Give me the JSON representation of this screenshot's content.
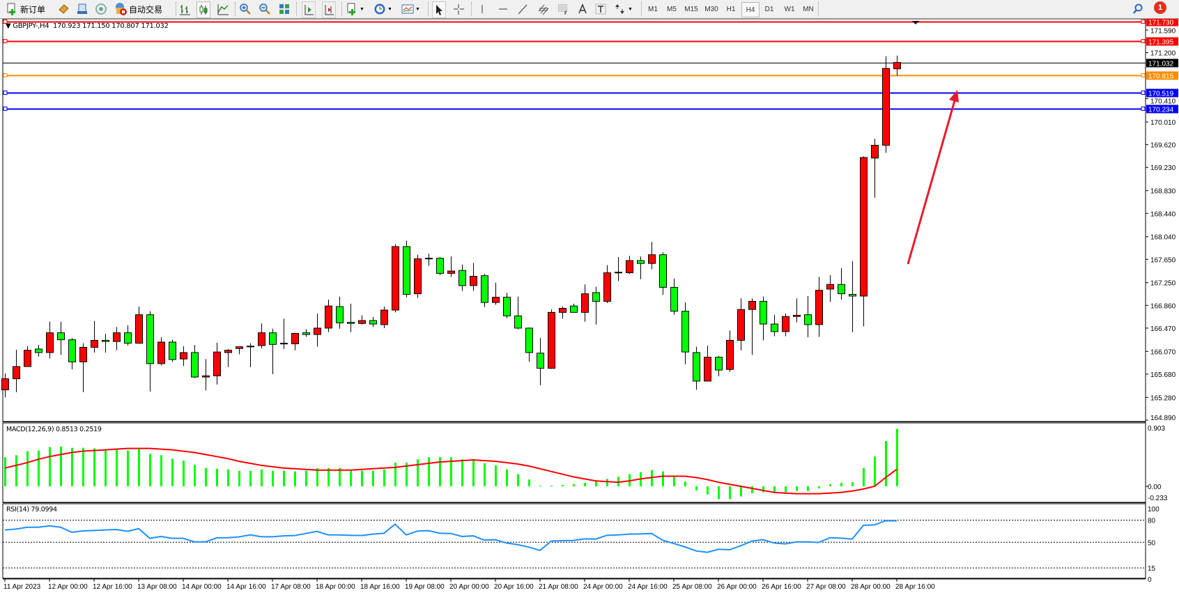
{
  "toolbar": {
    "new_order_label": "新订单",
    "auto_trading_label": "自动交易",
    "timeframes": [
      "M1",
      "M5",
      "M15",
      "M30",
      "H1",
      "H4",
      "D1",
      "W1",
      "MN"
    ],
    "selected_timeframe": "H4",
    "notification_count": "1",
    "icons": [
      "new-order-icon",
      "metaeditor-icon",
      "data-window-icon",
      "signals-icon",
      "auto-trading-icon",
      "bar-chart-icon",
      "candlestick-icon",
      "line-chart-icon",
      "zoom-in-icon",
      "zoom-out-icon",
      "tile-windows-icon",
      "chart-shift-icon",
      "autoscroll-icon",
      "indicators-icon",
      "periods-icon",
      "templates-icon",
      "cursor-icon",
      "crosshair-icon",
      "vertical-line-icon",
      "horizontal-line-icon",
      "trendline-icon",
      "equidistant-channel-icon",
      "fibonacci-icon",
      "text-icon",
      "text-label-icon",
      "arrows-icon",
      "search-icon",
      "notification-icon"
    ]
  },
  "chart": {
    "symbol_header": "GBPJPY-,H4  170.923 171.150 170.807 171.032",
    "colors": {
      "up": "#ff0000",
      "down": "#00ff00",
      "grid_bg": "#ffffff",
      "macd_hist": "#00ff00",
      "macd_signal": "#ff0000",
      "rsi": "#1e90ff",
      "arrow": "#e8192c"
    },
    "price_axis_ticks": [
      "171.590",
      "171.200",
      "170.410",
      "170.010",
      "169.620",
      "169.230",
      "168.830",
      "168.440",
      "168.040",
      "167.650",
      "167.250",
      "166.860",
      "166.470",
      "166.070",
      "165.680",
      "165.280",
      "164.890"
    ],
    "price_lines": [
      {
        "value": "171.730",
        "color": "#ff0000"
      },
      {
        "value": "171.395",
        "color": "#ff0000"
      },
      {
        "value": "171.032",
        "color": "#000000"
      },
      {
        "value": "170.815",
        "color": "#ff8c00"
      },
      {
        "value": "170.519",
        "color": "#0000ff"
      },
      {
        "value": "170.234",
        "color": "#0000ff"
      }
    ],
    "time_labels": [
      "11 Apr 2023",
      "12 Apr 00:00",
      "12 Apr 16:00",
      "13 Apr 08:00",
      "14 Apr 00:00",
      "14 Apr 16:00",
      "17 Apr 08:00",
      "18 Apr 00:00",
      "18 Apr 16:00",
      "19 Apr 08:00",
      "20 Apr 00:00",
      "20 Apr 16:00",
      "21 Apr 08:00",
      "24 Apr 00:00",
      "24 Apr 16:00",
      "25 Apr 08:00",
      "26 Apr 00:00",
      "26 Apr 16:00",
      "27 Apr 08:00",
      "28 Apr 00:00",
      "28 Apr 16:00"
    ],
    "arrow_annotation": {
      "from_price": 167.57,
      "to_price": 170.56
    }
  },
  "macd": {
    "label": "MACD(12,26,9) 0.8513 0.2519",
    "axis_labels": [
      "0.903",
      "0.00",
      "-0.233"
    ]
  },
  "rsi": {
    "label": "RSI(14) 79.0994",
    "axis_labels": [
      "100",
      "80",
      "50",
      "15",
      "0"
    ],
    "levels": [
      80,
      50,
      15
    ]
  },
  "chart_data": {
    "type": "candlestick",
    "symbol": "GBPJPY-",
    "timeframe": "H4",
    "ohlc": [
      [
        165.41,
        165.69,
        165.28,
        165.6
      ],
      [
        165.6,
        166.1,
        165.37,
        165.81
      ],
      [
        165.81,
        166.16,
        165.81,
        166.09
      ],
      [
        166.11,
        166.18,
        165.98,
        166.05
      ],
      [
        166.05,
        166.58,
        165.95,
        166.39
      ],
      [
        166.39,
        166.58,
        166.01,
        166.27
      ],
      [
        166.27,
        166.3,
        165.76,
        165.89
      ],
      [
        165.89,
        166.21,
        165.37,
        166.14
      ],
      [
        166.14,
        166.59,
        166.05,
        166.26
      ],
      [
        166.26,
        166.37,
        166.05,
        166.24
      ],
      [
        166.24,
        166.49,
        166.09,
        166.39
      ],
      [
        166.39,
        166.52,
        166.17,
        166.21
      ],
      [
        166.21,
        166.84,
        166.21,
        166.7
      ],
      [
        166.7,
        166.76,
        165.38,
        165.86
      ],
      [
        165.86,
        166.31,
        165.83,
        166.23
      ],
      [
        166.23,
        166.27,
        165.89,
        165.93
      ],
      [
        165.94,
        166.16,
        165.82,
        166.05
      ],
      [
        166.05,
        166.18,
        165.61,
        165.63
      ],
      [
        165.63,
        165.94,
        165.4,
        165.65
      ],
      [
        165.65,
        166.22,
        165.5,
        166.06
      ],
      [
        166.05,
        166.11,
        165.8,
        166.09
      ],
      [
        166.12,
        166.15,
        166.02,
        166.15
      ],
      [
        166.16,
        166.21,
        165.8,
        166.16
      ],
      [
        166.17,
        166.55,
        166.12,
        166.39
      ],
      [
        166.39,
        166.46,
        165.68,
        166.19
      ],
      [
        166.21,
        166.63,
        166.11,
        166.21
      ],
      [
        166.2,
        166.39,
        166.09,
        166.38
      ],
      [
        166.39,
        166.45,
        166.32,
        166.36
      ],
      [
        166.36,
        166.72,
        166.15,
        166.47
      ],
      [
        166.47,
        166.96,
        166.4,
        166.85
      ],
      [
        166.84,
        167.01,
        166.46,
        166.56
      ],
      [
        166.57,
        166.89,
        166.4,
        166.55
      ],
      [
        166.55,
        166.69,
        166.53,
        166.6
      ],
      [
        166.6,
        166.66,
        166.49,
        166.54
      ],
      [
        166.53,
        166.84,
        166.47,
        166.78
      ],
      [
        166.78,
        167.91,
        166.74,
        167.87
      ],
      [
        167.87,
        167.97,
        167.0,
        167.05
      ],
      [
        167.06,
        167.73,
        166.99,
        167.66
      ],
      [
        167.67,
        167.75,
        167.54,
        167.67
      ],
      [
        167.67,
        167.69,
        167.38,
        167.41
      ],
      [
        167.41,
        167.7,
        167.35,
        167.45
      ],
      [
        167.46,
        167.56,
        167.11,
        167.2
      ],
      [
        167.2,
        167.59,
        167.11,
        167.36
      ],
      [
        167.37,
        167.4,
        166.83,
        166.91
      ],
      [
        166.91,
        167.25,
        166.87,
        167.0
      ],
      [
        167.0,
        167.08,
        166.64,
        166.68
      ],
      [
        166.68,
        167.01,
        166.45,
        166.47
      ],
      [
        166.47,
        166.48,
        165.89,
        166.05
      ],
      [
        166.04,
        166.3,
        165.49,
        165.78
      ],
      [
        165.78,
        166.79,
        165.77,
        166.74
      ],
      [
        166.74,
        166.84,
        166.63,
        166.81
      ],
      [
        166.85,
        166.89,
        166.74,
        166.74
      ],
      [
        166.74,
        167.22,
        166.58,
        167.06
      ],
      [
        167.08,
        167.18,
        166.53,
        166.93
      ],
      [
        166.93,
        167.55,
        166.9,
        167.42
      ],
      [
        167.43,
        167.69,
        167.28,
        167.43
      ],
      [
        167.42,
        167.71,
        167.4,
        167.63
      ],
      [
        167.63,
        167.7,
        167.31,
        167.58
      ],
      [
        167.58,
        167.95,
        167.48,
        167.73
      ],
      [
        167.73,
        167.77,
        167.04,
        167.17
      ],
      [
        167.17,
        167.32,
        166.7,
        166.76
      ],
      [
        166.76,
        166.91,
        165.85,
        166.06
      ],
      [
        166.05,
        166.15,
        165.41,
        165.56
      ],
      [
        165.56,
        166.17,
        165.56,
        165.97
      ],
      [
        165.97,
        165.99,
        165.64,
        165.75
      ],
      [
        165.76,
        166.43,
        165.72,
        166.26
      ],
      [
        166.26,
        166.98,
        166.09,
        166.79
      ],
      [
        166.79,
        166.98,
        166.01,
        166.93
      ],
      [
        166.93,
        167.01,
        166.26,
        166.54
      ],
      [
        166.54,
        166.7,
        166.33,
        166.41
      ],
      [
        166.41,
        166.72,
        166.33,
        166.67
      ],
      [
        166.67,
        166.98,
        166.57,
        166.69
      ],
      [
        166.7,
        167.02,
        166.31,
        166.53
      ],
      [
        166.53,
        167.35,
        166.32,
        167.12
      ],
      [
        167.14,
        167.38,
        166.92,
        167.22
      ],
      [
        167.22,
        167.5,
        166.96,
        167.06
      ],
      [
        167.05,
        167.62,
        166.4,
        167.02
      ],
      [
        167.02,
        169.42,
        166.5,
        169.4
      ],
      [
        169.39,
        169.72,
        168.71,
        169.61
      ],
      [
        169.61,
        171.14,
        169.48,
        170.93
      ],
      [
        170.923,
        171.15,
        170.807,
        171.032
      ]
    ],
    "macd_main": [
      0.43,
      0.46,
      0.52,
      0.53,
      0.58,
      0.59,
      0.57,
      0.57,
      0.56,
      0.55,
      0.54,
      0.53,
      0.55,
      0.48,
      0.46,
      0.41,
      0.38,
      0.32,
      0.27,
      0.26,
      0.25,
      0.23,
      0.23,
      0.25,
      0.23,
      0.23,
      0.22,
      0.23,
      0.27,
      0.27,
      0.27,
      0.23,
      0.23,
      0.23,
      0.25,
      0.35,
      0.35,
      0.4,
      0.43,
      0.43,
      0.43,
      0.4,
      0.39,
      0.34,
      0.31,
      0.25,
      0.18,
      0.1,
      0.01,
      0.01,
      0.02,
      0.03,
      0.05,
      0.08,
      0.11,
      0.14,
      0.18,
      0.21,
      0.24,
      0.22,
      0.15,
      0.07,
      -0.06,
      -0.12,
      -0.19,
      -0.19,
      -0.15,
      -0.1,
      -0.09,
      -0.1,
      -0.09,
      -0.07,
      -0.07,
      -0.03,
      0.03,
      0.05,
      0.06,
      0.27,
      0.44,
      0.67,
      0.8513
    ],
    "macd_signal": [
      0.27,
      0.31,
      0.35,
      0.4,
      0.44,
      0.47,
      0.5,
      0.52,
      0.53,
      0.54,
      0.55,
      0.56,
      0.56,
      0.56,
      0.55,
      0.54,
      0.52,
      0.5,
      0.47,
      0.44,
      0.41,
      0.37,
      0.34,
      0.31,
      0.29,
      0.27,
      0.26,
      0.25,
      0.24,
      0.24,
      0.24,
      0.24,
      0.25,
      0.26,
      0.27,
      0.28,
      0.3,
      0.32,
      0.34,
      0.36,
      0.37,
      0.38,
      0.39,
      0.38,
      0.37,
      0.35,
      0.33,
      0.3,
      0.26,
      0.22,
      0.18,
      0.14,
      0.11,
      0.08,
      0.07,
      0.06,
      0.08,
      0.11,
      0.13,
      0.15,
      0.15,
      0.15,
      0.13,
      0.1,
      0.06,
      0.03,
      0.0,
      -0.03,
      -0.06,
      -0.09,
      -0.1,
      -0.11,
      -0.11,
      -0.11,
      -0.1,
      -0.09,
      -0.07,
      -0.04,
      0.0,
      0.13,
      0.2519
    ],
    "macd_range": [
      -0.233,
      0.903
    ],
    "rsi_values": [
      66.7,
      67.9,
      70.4,
      70.4,
      72.3,
      70.4,
      63.5,
      65.4,
      66.0,
      66.7,
      67.3,
      64.8,
      68.5,
      55.3,
      57.8,
      55.3,
      55.3,
      50.5,
      50.5,
      55.9,
      56.2,
      57.2,
      60.0,
      57.5,
      57.5,
      58.7,
      59.1,
      61.9,
      64.8,
      60.0,
      60.0,
      59.4,
      59.1,
      61.0,
      62.2,
      74.6,
      60.0,
      65.1,
      65.7,
      62.2,
      61.9,
      57.8,
      58.7,
      52.8,
      53.4,
      48.9,
      46.7,
      43.3,
      38.8,
      51.5,
      52.1,
      52.4,
      54.6,
      54.3,
      59.4,
      60.0,
      61.0,
      61.3,
      61.9,
      52.8,
      48.3,
      43.6,
      38.2,
      36.3,
      40.4,
      39.8,
      45.2,
      51.5,
      53.4,
      48.9,
      47.7,
      50.5,
      50.5,
      49.6,
      56.2,
      55.6,
      54.3,
      73.0,
      73.6,
      79.3,
      79.0994
    ],
    "rsi_range": [
      0,
      100
    ],
    "price_range": [
      164.89,
      171.73
    ]
  }
}
